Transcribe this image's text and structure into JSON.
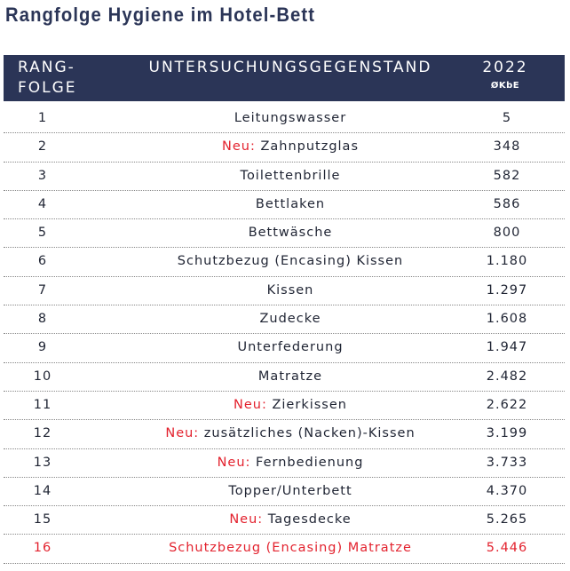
{
  "title": "Rangfolge Hygiene im Hotel-Bett",
  "header": {
    "rank_line1": "RANG-",
    "rank_line2": "FOLGE",
    "item": "UNTERSUCHUNGSGEGENSTAND",
    "year": "2022",
    "unit": "ØKbE"
  },
  "highlight_color": "#e3222e",
  "header_color": "#2b3557",
  "rows": [
    {
      "rank": "1",
      "prefix": "",
      "item": "Leitungswasser",
      "value": "5"
    },
    {
      "rank": "2",
      "prefix": "Neu:",
      "item": "Zahnputzglas",
      "value": "348"
    },
    {
      "rank": "3",
      "prefix": "",
      "item": "Toilettenbrille",
      "value": "582"
    },
    {
      "rank": "4",
      "prefix": "",
      "item": "Bettlaken",
      "value": "586"
    },
    {
      "rank": "5",
      "prefix": "",
      "item": "Bettwäsche",
      "value": "800"
    },
    {
      "rank": "6",
      "prefix": "",
      "item": "Schutzbezug (Encasing) Kissen",
      "value": "1.180"
    },
    {
      "rank": "7",
      "prefix": "",
      "item": "Kissen",
      "value": "1.297"
    },
    {
      "rank": "8",
      "prefix": "",
      "item": "Zudecke",
      "value": "1.608"
    },
    {
      "rank": "9",
      "prefix": "",
      "item": "Unterfederung",
      "value": "1.947"
    },
    {
      "rank": "10",
      "prefix": "",
      "item": "Matratze",
      "value": "2.482"
    },
    {
      "rank": "11",
      "prefix": "Neu:",
      "item": "Zierkissen",
      "value": "2.622"
    },
    {
      "rank": "12",
      "prefix": "Neu:",
      "item": "zusätzliches (Nacken)-Kissen",
      "value": "3.199"
    },
    {
      "rank": "13",
      "prefix": "Neu:",
      "item": "Fernbedienung",
      "value": "3.733"
    },
    {
      "rank": "14",
      "prefix": "",
      "item": "Topper/Unterbett",
      "value": "4.370"
    },
    {
      "rank": "15",
      "prefix": "Neu:",
      "item": "Tagesdecke",
      "value": "5.265"
    },
    {
      "rank": "16",
      "prefix": "",
      "item": "Schutzbezug (Encasing) Matratze",
      "value": "5.446",
      "highlight": true
    }
  ]
}
